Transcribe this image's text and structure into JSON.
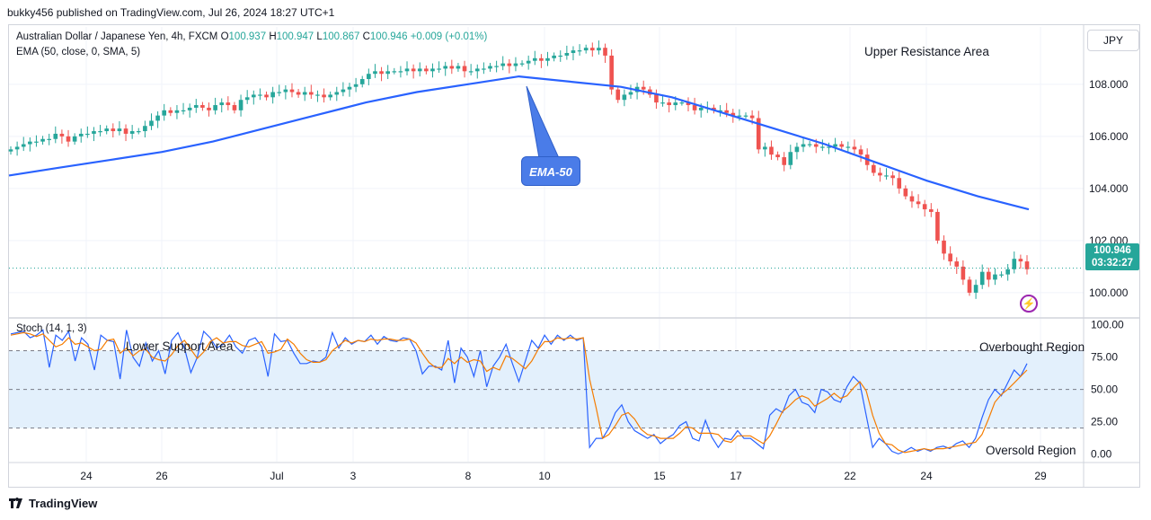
{
  "header": {
    "publisher": "bukky456 published on TradingView.com, Jul 26, 2024 18:27 UTC+1"
  },
  "legend": {
    "symbol": "Australian Dollar / Japanese Yen, 4h, FXCM",
    "o_label": "O",
    "o": "100.937",
    "h_label": "H",
    "h": "100.947",
    "l_label": "L",
    "l": "100.867",
    "c_label": "C",
    "c": "100.946",
    "change": "+0.009 (+0.01%)",
    "ema": "EMA (50, close, 0, SMA, 5)",
    "stoch": "Stoch (14, 1, 3)"
  },
  "annotations": {
    "upper": "Upper Resistance Area",
    "lower": "Lower Support Area",
    "overbought": "Overbought Region",
    "oversold": "Oversold Region",
    "ema_callout": "EMA-50"
  },
  "currency": "JPY",
  "price_tag": {
    "price": "100.946",
    "countdown": "03:32:27"
  },
  "footer": {
    "brand": "TradingView"
  },
  "colors": {
    "up": "#26a69a",
    "down": "#ef5350",
    "ema": "#2962ff",
    "stoch_k": "#2962ff",
    "stoch_d": "#f57c00",
    "band": "#e3f0fc"
  },
  "chart_data": [
    {
      "type": "candlestick",
      "x_ticks": [
        "24",
        "26",
        "Jul",
        "3",
        "8",
        "10",
        "15",
        "17",
        "22",
        "24",
        "29"
      ],
      "y_ticks": [
        "108.000",
        "106.000",
        "104.000",
        "102.000",
        "100.000"
      ],
      "ylim": [
        99.1,
        110.2
      ],
      "last_price": 100.946,
      "close": [
        105.5,
        105.6,
        105.7,
        105.8,
        105.8,
        105.9,
        105.9,
        106.1,
        106.0,
        105.8,
        106.0,
        106.1,
        106.1,
        106.2,
        106.2,
        106.3,
        106.2,
        106.3,
        106.1,
        106.2,
        106.2,
        106.4,
        106.6,
        106.8,
        107.0,
        106.9,
        107.0,
        107.0,
        107.1,
        107.2,
        107.1,
        107.0,
        107.2,
        107.3,
        107.2,
        107.0,
        107.4,
        107.5,
        107.6,
        107.6,
        107.5,
        107.7,
        107.7,
        107.8,
        107.7,
        107.6,
        107.7,
        107.6,
        107.6,
        107.5,
        107.6,
        107.7,
        107.8,
        107.9,
        108.0,
        108.2,
        108.4,
        108.5,
        108.4,
        108.5,
        108.5,
        108.5,
        108.6,
        108.5,
        108.6,
        108.5,
        108.6,
        108.6,
        108.7,
        108.6,
        108.7,
        108.5,
        108.5,
        108.6,
        108.6,
        108.7,
        108.7,
        108.8,
        108.7,
        108.8,
        108.8,
        108.9,
        109.0,
        108.9,
        109.0,
        109.1,
        109.1,
        109.2,
        109.3,
        109.3,
        109.4,
        109.3,
        109.4,
        109.1,
        107.8,
        107.4,
        107.6,
        107.7,
        107.9,
        107.8,
        107.6,
        107.3,
        107.3,
        107.2,
        107.3,
        107.3,
        107.2,
        107.0,
        107.1,
        107.1,
        107.0,
        107.0,
        106.9,
        106.8,
        106.8,
        106.8,
        106.7,
        105.5,
        105.6,
        105.3,
        105.2,
        104.9,
        105.4,
        105.6,
        105.7,
        105.7,
        105.6,
        105.6,
        105.6,
        105.7,
        105.6,
        105.6,
        105.5,
        105.3,
        104.9,
        104.6,
        104.5,
        104.5,
        104.4,
        104.0,
        103.7,
        103.5,
        103.4,
        103.2,
        103.1,
        102.0,
        101.5,
        101.2,
        101.0,
        100.5,
        100.0,
        100.3,
        100.8,
        100.5,
        100.7,
        100.7,
        100.9,
        101.3,
        101.2,
        100.9
      ],
      "ema50": [
        104.5,
        104.8,
        105.1,
        105.4,
        105.8,
        106.3,
        106.8,
        107.3,
        107.7,
        108.0,
        108.3,
        108.1,
        107.9,
        107.5,
        106.9,
        106.3,
        105.7,
        105.0,
        104.3,
        103.7,
        103.2
      ]
    },
    {
      "type": "line",
      "name": "Stoch (14, 1, 3)",
      "y_ticks": [
        "100.00",
        "75.00",
        "50.00",
        "25.00",
        "0.00"
      ],
      "ylim": [
        -6,
        104
      ],
      "overbought": 80,
      "oversold": 20,
      "k": [
        93,
        94,
        95,
        90,
        92,
        96,
        67,
        92,
        88,
        95,
        72,
        90,
        85,
        65,
        92,
        88,
        87,
        58,
        96,
        75,
        68,
        86,
        72,
        80,
        62,
        88,
        94,
        82,
        63,
        75,
        95,
        90,
        82,
        85,
        92,
        83,
        78,
        88,
        90,
        83,
        60,
        93,
        87,
        88,
        78,
        70,
        70,
        72,
        71,
        75,
        94,
        82,
        90,
        85,
        88,
        87,
        92,
        85,
        91,
        88,
        87,
        90,
        89,
        80,
        62,
        68,
        68,
        65,
        88,
        55,
        82,
        75,
        60,
        80,
        52,
        68,
        75,
        85,
        70,
        56,
        72,
        88,
        82,
        92,
        85,
        92,
        88,
        92,
        88,
        90,
        5,
        12,
        12,
        20,
        32,
        38,
        25,
        18,
        15,
        12,
        15,
        8,
        12,
        15,
        22,
        25,
        12,
        10,
        26,
        13,
        5,
        12,
        11,
        18,
        12,
        12,
        8,
        4,
        30,
        35,
        32,
        45,
        50,
        40,
        38,
        32,
        50,
        48,
        42,
        40,
        52,
        60,
        55,
        30,
        5,
        12,
        8,
        2,
        0,
        2,
        5,
        2,
        4,
        2,
        5,
        6,
        4,
        8,
        10,
        5,
        12,
        28,
        42,
        50,
        45,
        55,
        65,
        60,
        70
      ],
      "d": [
        92,
        93,
        94,
        93,
        91,
        93,
        88,
        83,
        85,
        90,
        85,
        86,
        83,
        80,
        81,
        88,
        89,
        78,
        82,
        76,
        80,
        81,
        75,
        73,
        72,
        77,
        84,
        88,
        81,
        74,
        79,
        87,
        90,
        86,
        87,
        87,
        84,
        83,
        85,
        87,
        78,
        79,
        81,
        89,
        85,
        78,
        73,
        71,
        71,
        73,
        80,
        84,
        88,
        86,
        88,
        87,
        89,
        88,
        89,
        89,
        88,
        88,
        89,
        86,
        78,
        71,
        67,
        67,
        74,
        70,
        75,
        71,
        73,
        72,
        64,
        67,
        65,
        76,
        74,
        70,
        66,
        72,
        81,
        87,
        87,
        90,
        89,
        90,
        89,
        90,
        58,
        36,
        12,
        15,
        22,
        30,
        32,
        27,
        19,
        15,
        14,
        12,
        12,
        12,
        16,
        21,
        20,
        16,
        16,
        16,
        15,
        10,
        9,
        14,
        14,
        14,
        11,
        8,
        14,
        23,
        33,
        37,
        42,
        45,
        43,
        37,
        40,
        43,
        47,
        43,
        45,
        51,
        56,
        49,
        30,
        16,
        8,
        7,
        3,
        1,
        2,
        3,
        4,
        3,
        4,
        4,
        5,
        6,
        7,
        8,
        9,
        15,
        27,
        40,
        46,
        50,
        55,
        60,
        65
      ]
    }
  ]
}
